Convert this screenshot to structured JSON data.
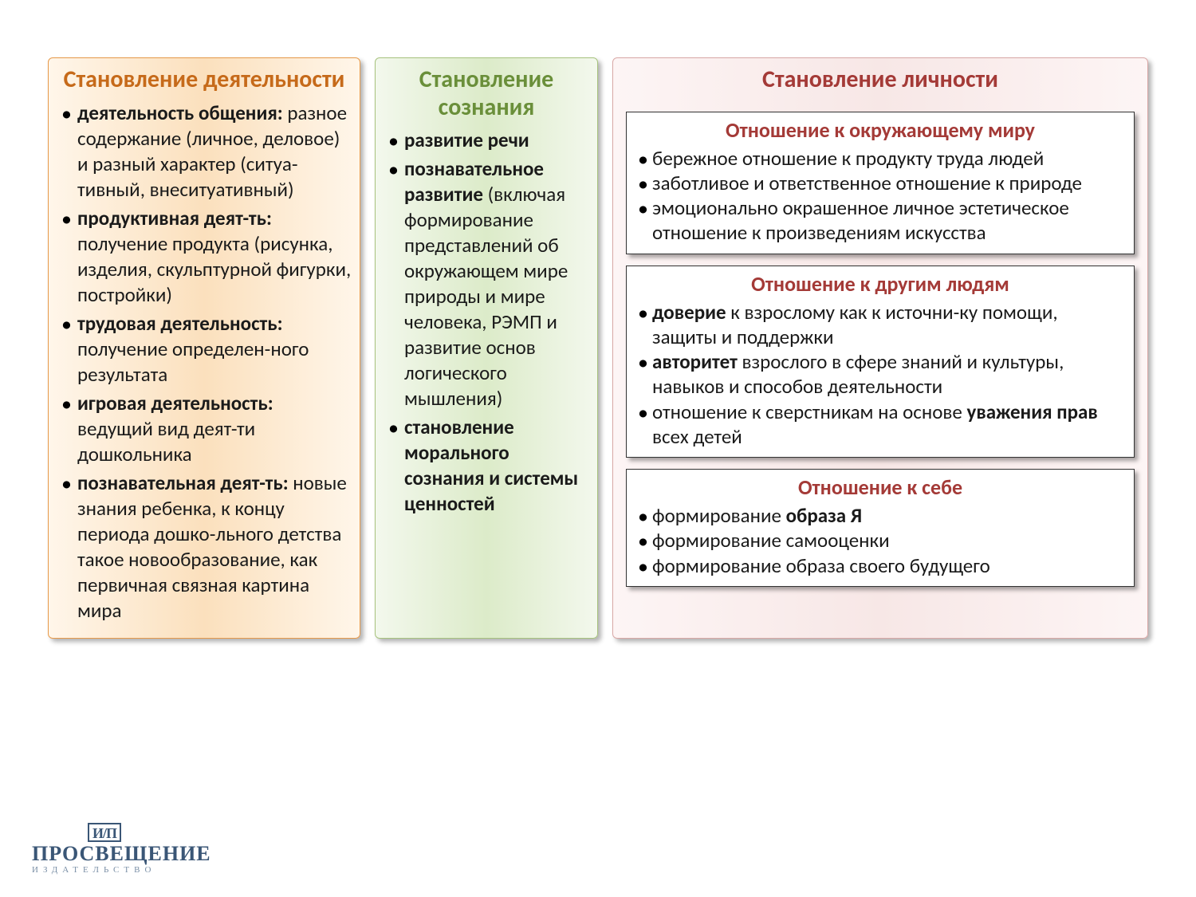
{
  "colors": {
    "orange_title": "#c66a1a",
    "green_title": "#6a8f3a",
    "red_title": "#a43a37",
    "text": "#1a1a1a",
    "logo": "#3a5676"
  },
  "panel1": {
    "title": "Становление деятельности",
    "items": [
      {
        "bold": "деятельность общения:",
        "rest": " разное содержание (личное, деловое) и разный характер (ситуа-тивный, внеситуативный)"
      },
      {
        "bold": "продуктивная  деят-ть:",
        "rest": " получение  продукта (рисунка, изделия, скульптурной фигурки, постройки)"
      },
      {
        "bold": "трудовая деятельность:",
        "rest": " получение определен-ного результата"
      },
      {
        "bold": "игровая деятельность:",
        "rest": " ведущий вид деят-ти дошкольника"
      },
      {
        "bold": "познавательная деят-ть:",
        "rest": " новые знания ребенка, к концу периода дошко-льного детства такое новообразование, как первичная связная картина мира"
      }
    ]
  },
  "panel2": {
    "title": "Становление сознания",
    "items": [
      {
        "bold": "развитие речи",
        "rest": ""
      },
      {
        "bold": "познавательное развитие",
        "rest": " (включая формирование представлений об окружающем мире природы и мире человека, РЭМП и развитие основ логического мышления)"
      },
      {
        "bold": "становление морального сознания и системы ценностей",
        "rest": ""
      }
    ]
  },
  "panel3": {
    "title": "Становление личности",
    "sub1": {
      "title": "Отношение к окружающему миру",
      "items": [
        "бережное отношение к продукту труда людей",
        "заботливое и ответственное отношение к природе",
        "эмоционально окрашенное личное эстетическое отношение к произведениям искусства"
      ]
    },
    "sub2": {
      "title": "Отношение к другим людям",
      "items_html": [
        "<b>доверие</b> к взрослому как к источни-ку помощи, защиты и поддержки",
        "<b>авторитет</b> взрослого в сфере знаний и культуры, навыков и способов деятельности",
        "отношение к сверстникам на основе <b>уважения прав</b> всех детей"
      ]
    },
    "sub3": {
      "title": "Отношение к себе",
      "items_html": [
        "формирование <b>образа Я</b>",
        "формирование самооценки",
        "формирование образа своего будущего"
      ]
    }
  },
  "logo": {
    "mark": "И/П",
    "main": "ПРОСВЕЩЕНИЕ",
    "sub": "ИЗДАТЕЛЬСТВО"
  }
}
